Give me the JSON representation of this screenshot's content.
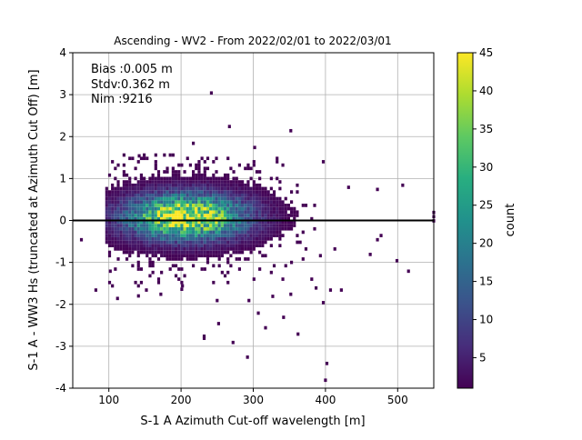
{
  "chart_data": {
    "type": "heatmap",
    "title": "Ascending - WV2 - From 2022/02/01 to 2022/03/01",
    "xlabel": "S-1 A Azimuth Cut-off wavelength [m]",
    "ylabel": "S-1 A - WW3 Hs (truncated at Azimuth Cut Off) [m]",
    "xlim": [
      50,
      550
    ],
    "ylim": [
      -4,
      4
    ],
    "xticks": [
      100,
      200,
      300,
      400,
      500
    ],
    "yticks": [
      -4,
      -3,
      -2,
      -1,
      0,
      1,
      2,
      3,
      4
    ],
    "grid": true,
    "reference_line_y": 0,
    "stats": [
      "Bias :0.005 m",
      "Stdv:0.362 m",
      "Nim :9216"
    ],
    "colorbar": {
      "label": "count",
      "colormap": "viridis",
      "min": 1,
      "max": 45,
      "ticks": [
        5,
        10,
        15,
        20,
        25,
        30,
        35,
        40,
        45
      ]
    },
    "density_model": {
      "center_x": 205,
      "center_y": 0.05,
      "sigma_x": 55,
      "sigma_y": 0.36,
      "peak_count": 45
    },
    "outliers": [
      {
        "x": 240,
        "y": 3.0
      },
      {
        "x": 265,
        "y": 2.2
      },
      {
        "x": 215,
        "y": 1.8
      },
      {
        "x": 350,
        "y": 2.1
      },
      {
        "x": 300,
        "y": 1.7
      },
      {
        "x": 140,
        "y": 1.5
      },
      {
        "x": 505,
        "y": 0.8
      },
      {
        "x": 470,
        "y": 0.7
      },
      {
        "x": 430,
        "y": 0.75
      },
      {
        "x": 475,
        "y": -0.4
      },
      {
        "x": 470,
        "y": -0.5
      },
      {
        "x": 497,
        "y": -1.0
      },
      {
        "x": 513,
        "y": -1.25
      },
      {
        "x": 460,
        "y": -0.85
      },
      {
        "x": 405,
        "y": -1.7
      },
      {
        "x": 420,
        "y": -1.7
      },
      {
        "x": 350,
        "y": -1.8
      },
      {
        "x": 340,
        "y": -2.35
      },
      {
        "x": 305,
        "y": -2.25
      },
      {
        "x": 315,
        "y": -2.6
      },
      {
        "x": 250,
        "y": -2.5
      },
      {
        "x": 230,
        "y": -2.8
      },
      {
        "x": 230,
        "y": -2.85
      },
      {
        "x": 270,
        "y": -2.95
      },
      {
        "x": 290,
        "y": -3.3
      },
      {
        "x": 360,
        "y": -2.75
      },
      {
        "x": 400,
        "y": -3.45
      },
      {
        "x": 398,
        "y": -3.85
      },
      {
        "x": 80,
        "y": -1.7
      },
      {
        "x": 100,
        "y": -1.25
      },
      {
        "x": 110,
        "y": -1.9
      },
      {
        "x": 60,
        "y": -0.5
      },
      {
        "x": 248,
        "y": -1.95
      },
      {
        "x": 292,
        "y": -1.95
      },
      {
        "x": 325,
        "y": -1.85
      },
      {
        "x": 385,
        "y": -1.65
      },
      {
        "x": 150,
        "y": -1.7
      },
      {
        "x": 170,
        "y": -1.8
      },
      {
        "x": 200,
        "y": -1.6
      },
      {
        "x": 548,
        "y": 0.15
      },
      {
        "x": 548,
        "y": -0.05
      },
      {
        "x": 548,
        "y": 0.05
      }
    ]
  }
}
